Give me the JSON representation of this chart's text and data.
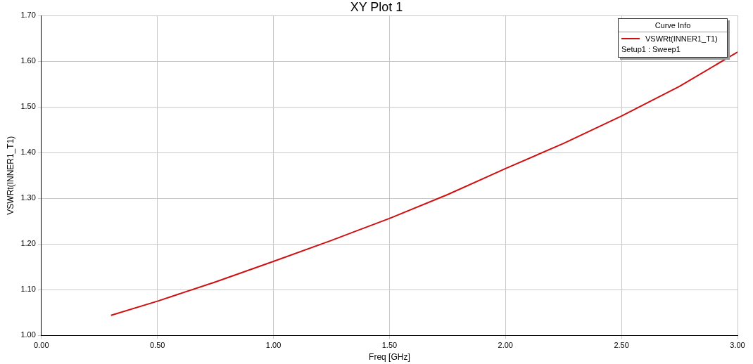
{
  "chart_data": {
    "type": "line",
    "title": "XY Plot 1",
    "xlabel": "Freq [GHz]",
    "ylabel": "VSWRt(INNER1_T1)",
    "legend_title": "Curve Info",
    "legend": "top right",
    "grid": true,
    "marker": "none",
    "line_style": "solid",
    "annotations": [
      "Setup1 : Sweep1"
    ],
    "x": [
      0.3,
      0.5,
      0.75,
      1.0,
      1.25,
      1.5,
      1.75,
      2.0,
      2.25,
      2.5,
      2.75,
      3.0
    ],
    "series": [
      {
        "name": "VSWRt(INNER1_T1)",
        "color": "#d01010",
        "values": [
          1.044,
          1.075,
          1.117,
          1.162,
          1.208,
          1.256,
          1.308,
          1.365,
          1.42,
          1.48,
          1.545,
          1.62
        ]
      }
    ],
    "xlim": [
      0,
      3
    ],
    "xticks": [
      {
        "value": 0,
        "label": "0.00"
      },
      {
        "value": 0.5,
        "label": "0.50"
      },
      {
        "value": 1,
        "label": "1.00"
      },
      {
        "value": 1.5,
        "label": "1.50"
      },
      {
        "value": 2,
        "label": "2.00"
      },
      {
        "value": 2.5,
        "label": "2.50"
      },
      {
        "value": 3,
        "label": "3.00"
      }
    ],
    "ylim": [
      1,
      1.7
    ],
    "yticks": [
      {
        "value": 1,
        "label": "1.00"
      },
      {
        "value": 1.1,
        "label": "1.10"
      },
      {
        "value": 1.2,
        "label": "1.20"
      },
      {
        "value": 1.3,
        "label": "1.30"
      },
      {
        "value": 1.4,
        "label": "1.40"
      },
      {
        "value": 1.5,
        "label": "1.50"
      },
      {
        "value": 1.6,
        "label": "1.60"
      },
      {
        "value": 1.7,
        "label": "1.70"
      }
    ]
  }
}
